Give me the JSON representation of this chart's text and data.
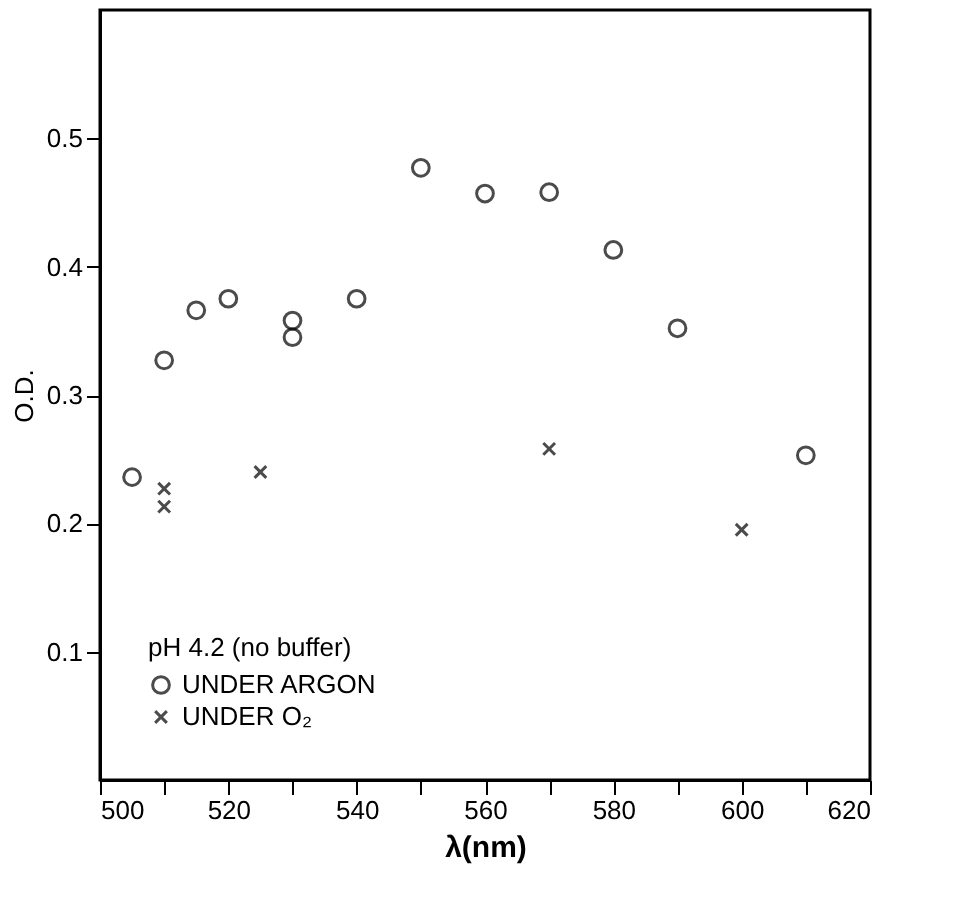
{
  "chart_data": {
    "type": "scatter",
    "xlabel": "λ(nm)",
    "ylabel": "O.D.",
    "legend_title": "pH 4.2 (no buffer)",
    "legend": "bottom left",
    "grid": false,
    "xlim": [
      500,
      620
    ],
    "ylim": [
      0,
      0.6
    ],
    "xticks": [
      500,
      {
        "value": 510,
        "label": null
      },
      520,
      {
        "value": 530,
        "label": null
      },
      540,
      {
        "value": 550,
        "label": null
      },
      560,
      {
        "value": 570,
        "label": null
      },
      580,
      {
        "value": 590,
        "label": null
      },
      600,
      {
        "value": 610,
        "label": null
      },
      620
    ],
    "yticks": [
      0.1,
      0.2,
      0.3,
      0.4,
      0.5
    ],
    "series": [
      {
        "name": "UNDER ARGON",
        "color": "#000000",
        "marker": "circle",
        "x": [
          505,
          510,
          515,
          520,
          530,
          530,
          540,
          550,
          560,
          570,
          580,
          590,
          610
        ],
        "values": [
          0.236,
          0.327,
          0.366,
          0.375,
          0.358,
          0.345,
          0.375,
          0.477,
          0.457,
          0.458,
          0.413,
          0.352,
          0.253
        ]
      },
      {
        "name": "UNDER O₂",
        "color": "#000000",
        "marker": "cross",
        "x": [
          510,
          510,
          525,
          570,
          600
        ],
        "values": [
          0.227,
          0.213,
          0.24,
          0.258,
          0.195
        ]
      }
    ]
  }
}
